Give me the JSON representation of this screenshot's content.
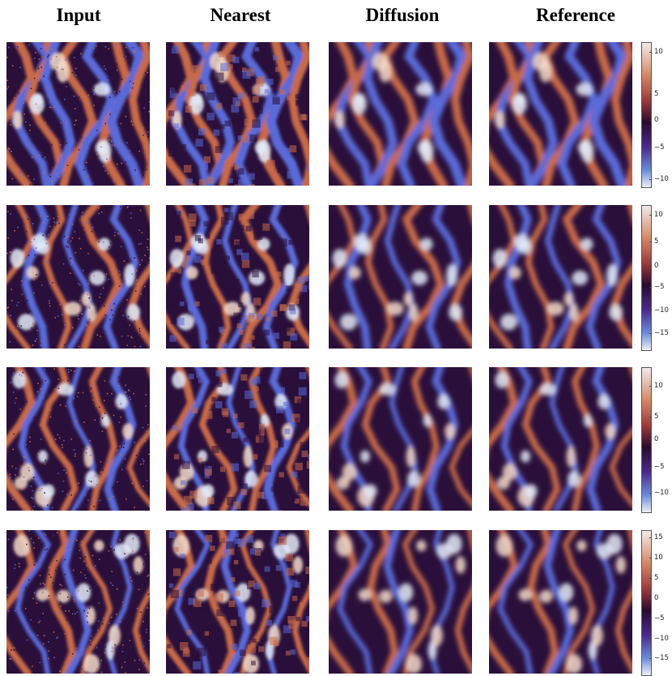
{
  "columns": [
    "Input",
    "Nearest",
    "Diffusion",
    "Reference"
  ],
  "rows": [
    {
      "colorbar_ticks": [
        "10",
        "5",
        "0",
        "−5",
        "−10"
      ],
      "tick_pos": [
        0.07,
        0.36,
        0.54,
        0.73,
        0.95
      ]
    },
    {
      "colorbar_ticks": [
        "10",
        "5",
        "0",
        "−5",
        "−10",
        "−15"
      ],
      "tick_pos": [
        0.07,
        0.25,
        0.42,
        0.57,
        0.73,
        0.89
      ]
    },
    {
      "colorbar_ticks": [
        "10",
        "5",
        "0",
        "−5",
        "−10"
      ],
      "tick_pos": [
        0.13,
        0.34,
        0.5,
        0.69,
        0.87
      ]
    },
    {
      "colorbar_ticks": [
        "15",
        "10",
        "5",
        "0",
        "−5",
        "−10",
        "−15"
      ],
      "tick_pos": [
        0.05,
        0.19,
        0.33,
        0.47,
        0.61,
        0.75,
        0.89
      ]
    }
  ],
  "colors": {
    "background_dark": "#2a0f3a",
    "positive": "#c86a4a",
    "positive_peak": "#f3d9c8",
    "negative": "#5a6ad8",
    "negative_peak": "#e3eaf7"
  }
}
